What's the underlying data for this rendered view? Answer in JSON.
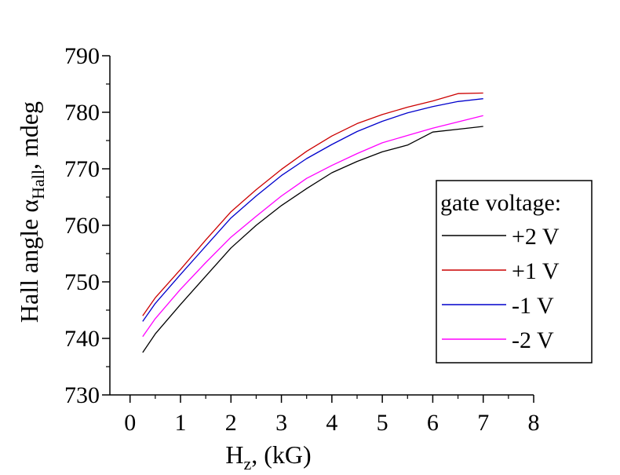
{
  "chart_data": {
    "type": "line",
    "xlabel": {
      "main": "H",
      "sub": "z",
      "rest": ", (kG)"
    },
    "ylabel": {
      "main": "Hall angle α",
      "sub": "Hall",
      "rest": ", mdeg"
    },
    "xlim": [
      -0.4,
      8
    ],
    "ylim": [
      730,
      790
    ],
    "xticks": [
      0,
      1,
      2,
      3,
      4,
      5,
      6,
      7,
      8
    ],
    "yticks": [
      730,
      740,
      750,
      760,
      770,
      780,
      790
    ],
    "legend": {
      "title": "gate voltage:",
      "placement": "right"
    },
    "x": [
      0.25,
      0.5,
      1.0,
      1.5,
      2.0,
      2.5,
      3.0,
      3.5,
      4.0,
      4.5,
      5.0,
      5.5,
      6.0,
      6.5,
      7.0
    ],
    "series": [
      {
        "name": "+2 V",
        "color": "#000000",
        "values": [
          737.5,
          740.8,
          746.0,
          751.0,
          756.0,
          760.0,
          763.5,
          766.5,
          769.3,
          771.3,
          773.0,
          774.2,
          776.5,
          777.0,
          777.5
        ]
      },
      {
        "name": "+1 V",
        "color": "#cc0000",
        "values": [
          744.0,
          747.2,
          752.2,
          757.4,
          762.4,
          766.3,
          769.9,
          773.1,
          775.8,
          778.0,
          779.6,
          780.9,
          782.0,
          783.3,
          783.4
        ]
      },
      {
        "name": "-1 V",
        "color": "#0000cc",
        "values": [
          743.0,
          746.2,
          751.3,
          756.3,
          761.3,
          765.2,
          768.8,
          771.8,
          774.3,
          776.6,
          778.4,
          779.9,
          781.0,
          781.9,
          782.4
        ]
      },
      {
        "name": "-2 V",
        "color": "#ff00ff",
        "values": [
          740.3,
          743.5,
          748.7,
          753.4,
          757.9,
          761.6,
          765.2,
          768.3,
          770.6,
          772.7,
          774.6,
          775.9,
          777.2,
          778.3,
          779.4
        ]
      }
    ]
  }
}
